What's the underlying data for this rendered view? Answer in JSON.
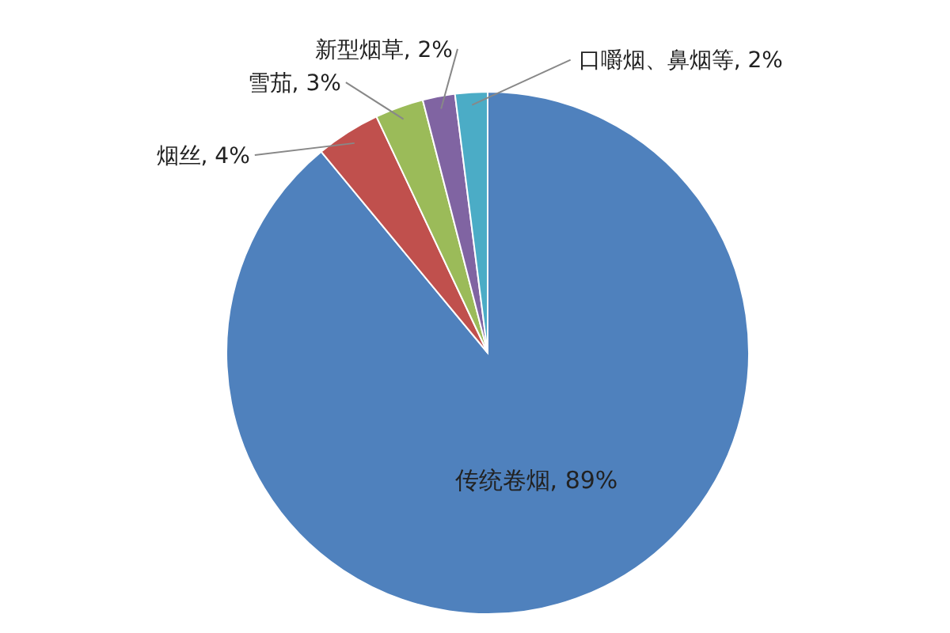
{
  "chart_data": {
    "type": "pie",
    "categories": [
      "传统卷烟",
      "烟丝",
      "雪茄",
      "新型烟草",
      "口嚼烟、鼻烟等"
    ],
    "values": [
      89,
      4,
      3,
      2,
      2
    ],
    "value_labels": [
      "89%",
      "4%",
      "3%",
      "2%",
      "2%"
    ],
    "colors": [
      "#4f81bd",
      "#c0504d",
      "#9bbb59",
      "#8064a2",
      "#4bacc6"
    ]
  }
}
